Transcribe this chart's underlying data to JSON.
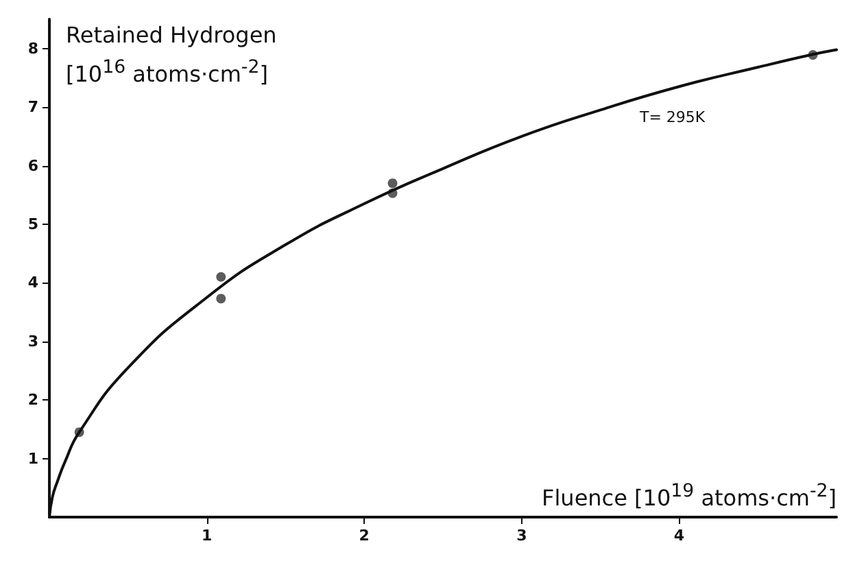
{
  "chart_data": {
    "type": "scatter",
    "xlabel": "Fluence [10$^{19}$ atoms·cm$^{-2}$]",
    "ylabel": "Retained Hydrogen\n[10$^{16}$ atoms·cm$^{-2}$]",
    "xlim": [
      0,
      5
    ],
    "ylim": [
      0,
      8.5
    ],
    "xticks": [
      1,
      2,
      3,
      4
    ],
    "yticks": [
      1,
      2,
      3,
      4,
      5,
      6,
      7,
      8
    ],
    "grid": false,
    "annotations": [
      {
        "text": "T= 295K",
        "x": 3.75,
        "y": 7.1
      }
    ],
    "series": [
      {
        "color": "#333333",
        "marker": "circle",
        "x": [
          0.19,
          1.09,
          1.09,
          2.18,
          2.18,
          4.85
        ],
        "values": [
          1.45,
          4.1,
          3.73,
          5.7,
          5.53,
          7.89
        ]
      },
      {
        "type": "line",
        "color": "#111111",
        "marker": "none",
        "line_style": "solid",
        "x": [
          0,
          0.02,
          0.05,
          0.1,
          0.19,
          0.5,
          1.0,
          1.5,
          2.0,
          2.5,
          3.0,
          3.5,
          4.0,
          4.5,
          4.85,
          5.0
        ],
        "values": [
          0,
          0.35,
          0.6,
          0.95,
          1.45,
          2.55,
          3.75,
          4.65,
          5.35,
          5.95,
          6.5,
          6.95,
          7.35,
          7.68,
          7.9,
          7.98
        ]
      }
    ]
  }
}
